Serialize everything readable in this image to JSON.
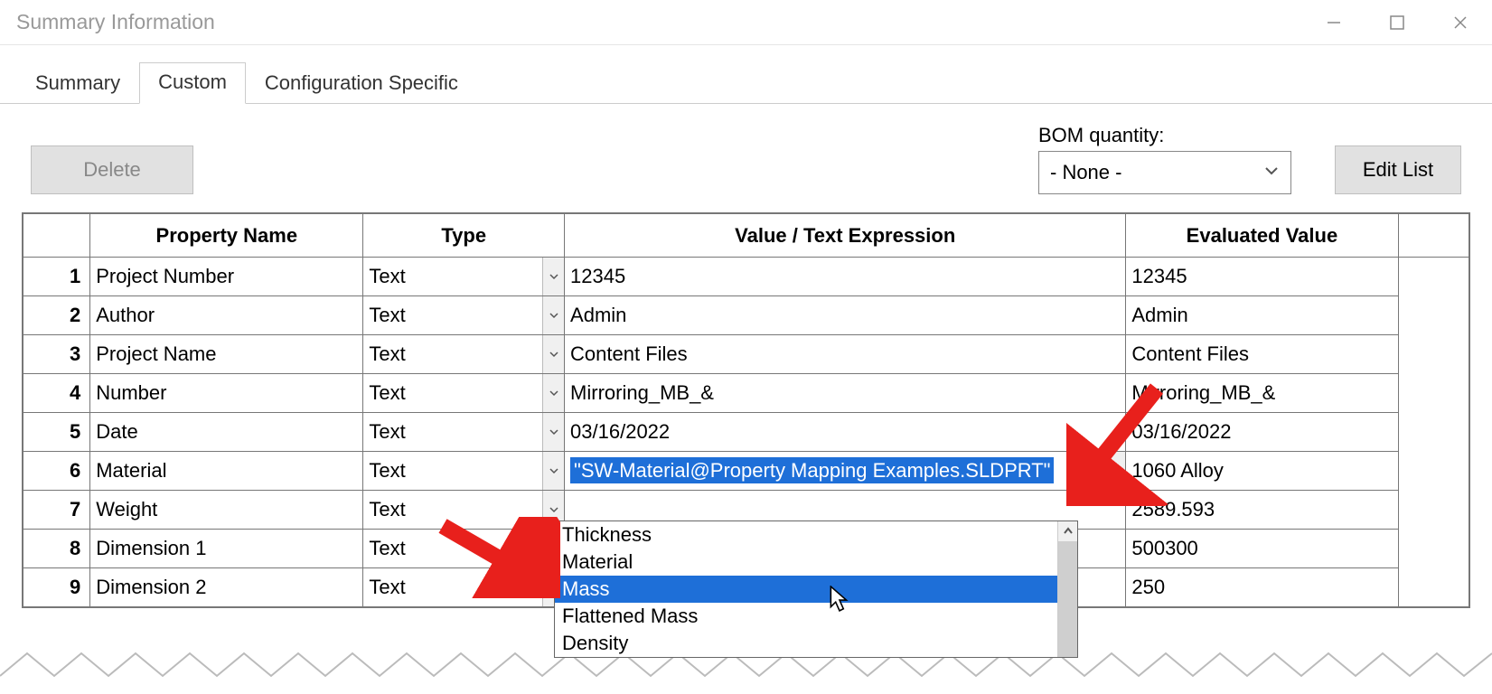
{
  "window": {
    "title": "Summary Information"
  },
  "tabs": {
    "summary": "Summary",
    "custom": "Custom",
    "config": "Configuration Specific",
    "active": "custom"
  },
  "buttons": {
    "delete": "Delete",
    "edit_list": "Edit List"
  },
  "bom": {
    "label": "BOM quantity:",
    "value": "- None -"
  },
  "columns": {
    "property_name": "Property Name",
    "type": "Type",
    "value_expr": "Value / Text Expression",
    "evaluated": "Evaluated Value"
  },
  "rows": [
    {
      "n": "1",
      "name": "Project Number",
      "type": "Text",
      "value": "12345",
      "eval": "12345"
    },
    {
      "n": "2",
      "name": "Author",
      "type": "Text",
      "value": "Admin",
      "eval": "Admin"
    },
    {
      "n": "3",
      "name": "Project Name",
      "type": "Text",
      "value": "Content Files",
      "eval": "Content Files"
    },
    {
      "n": "4",
      "name": "Number",
      "type": "Text",
      "value": "Mirroring_MB_&",
      "eval": "Mirroring_MB_&"
    },
    {
      "n": "5",
      "name": "Date",
      "type": "Text",
      "value": "03/16/2022",
      "eval": "03/16/2022",
      "eval_obscured": true
    },
    {
      "n": "6",
      "name": "Material",
      "type": "Text",
      "value": "\"SW-Material@Property Mapping Examples.SLDPRT\"",
      "eval": "1060 Alloy",
      "value_highlight": true,
      "value_dd": true
    },
    {
      "n": "7",
      "name": "Weight",
      "type": "Text",
      "value": "",
      "eval": "2589.593"
    },
    {
      "n": "8",
      "name": "Dimension 1",
      "type": "Text",
      "value": "",
      "eval": "500300"
    },
    {
      "n": "9",
      "name": "Dimension 2",
      "type": "Text",
      "value": "",
      "eval": "250"
    }
  ],
  "dropdown": {
    "options": [
      "Thickness",
      "Material",
      "Mass",
      "Flattened Mass",
      "Density"
    ],
    "highlighted": "Mass"
  },
  "colors": {
    "highlight_bg": "#1e6fd8",
    "highlight_fg": "#ffffff",
    "arrow": "#e8201c",
    "border": "#777777",
    "disabled_text": "#888888",
    "title_text": "#999999",
    "button_bg": "#e1e1e1"
  }
}
